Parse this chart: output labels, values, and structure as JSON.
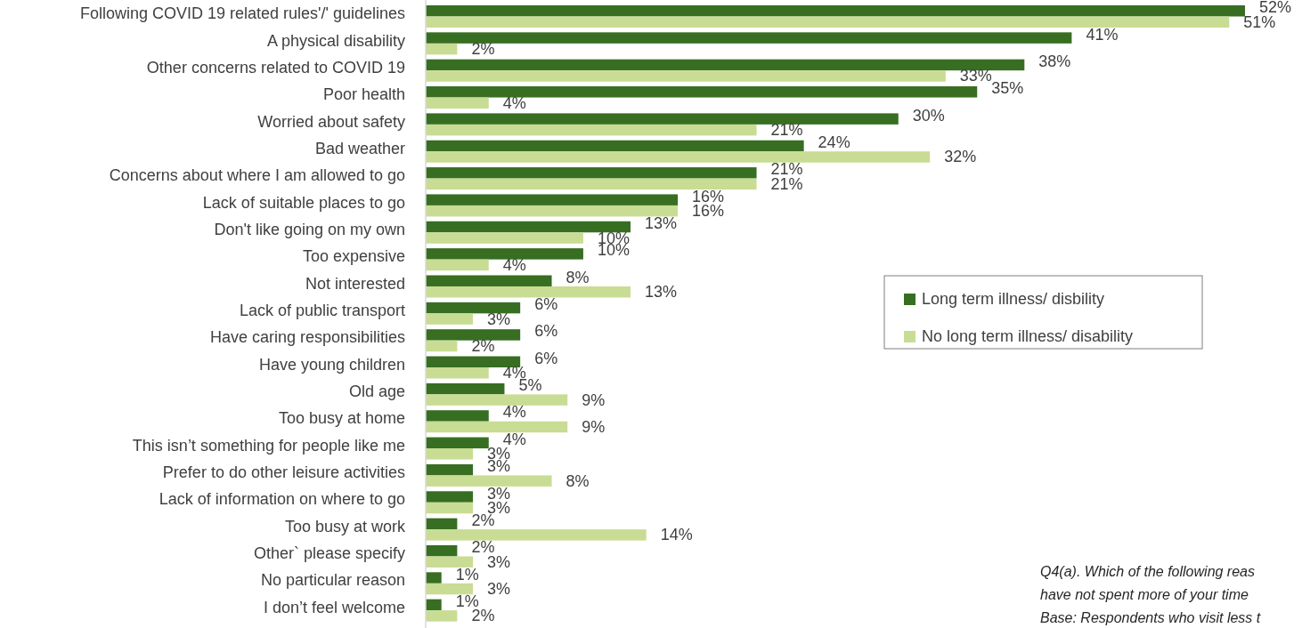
{
  "chart_data": {
    "type": "bar",
    "orientation": "horizontal",
    "categories": [
      "Following COVID 19 related rules'/' guidelines",
      "A physical disability",
      "Other concerns related to COVID 19",
      "Poor health",
      "Worried about safety",
      "Bad weather",
      "Concerns about where I am allowed to go",
      "Lack of suitable places to go",
      "Don't like going on my own",
      "Too expensive",
      "Not interested",
      "Lack of public transport",
      "Have caring responsibilities",
      "Have young children",
      "Old age",
      "Too busy at home",
      "This isn’t something for people like me",
      "Prefer to do other leisure activities",
      "Lack of information on where to go",
      "Too busy at work",
      "Other` please specify",
      "No particular reason",
      "I don’t feel welcome"
    ],
    "series": [
      {
        "name": "Long term illness/ disbility",
        "color": "#376e22",
        "values": [
          52,
          41,
          38,
          35,
          30,
          24,
          21,
          16,
          13,
          10,
          8,
          6,
          6,
          6,
          5,
          4,
          4,
          3,
          3,
          2,
          2,
          1,
          1
        ],
        "value_labels": [
          "52%",
          "41%",
          "38%",
          "35%",
          "30%",
          "24%",
          "21%",
          "16%",
          "13%",
          "10%",
          "8%",
          "6%",
          "6%",
          "6%",
          "5%",
          "4%",
          "4%",
          "3%",
          "3%",
          "2%",
          "2%",
          "1%",
          "1%"
        ]
      },
      {
        "name": "No long term illness/ disability",
        "color": "#c9dc94",
        "values": [
          51,
          2,
          33,
          4,
          21,
          32,
          21,
          16,
          10,
          4,
          13,
          3,
          2,
          4,
          9,
          9,
          3,
          8,
          3,
          14,
          3,
          3,
          2
        ],
        "value_labels": [
          "51%",
          "2%",
          "33%",
          "4%",
          "21%",
          "32%",
          "21%",
          "16%",
          "10%",
          "4%",
          "13%",
          "3%",
          "2%",
          "4%",
          "9%",
          "9%",
          "3%",
          "8%",
          "3%",
          "14%",
          "3%",
          "3%",
          "2%"
        ]
      }
    ],
    "legend": "right",
    "annotations": [
      "Q4(a). Which of the following reas",
      "have not spent more of your time",
      "Base: Respondents who visit less t"
    ]
  }
}
